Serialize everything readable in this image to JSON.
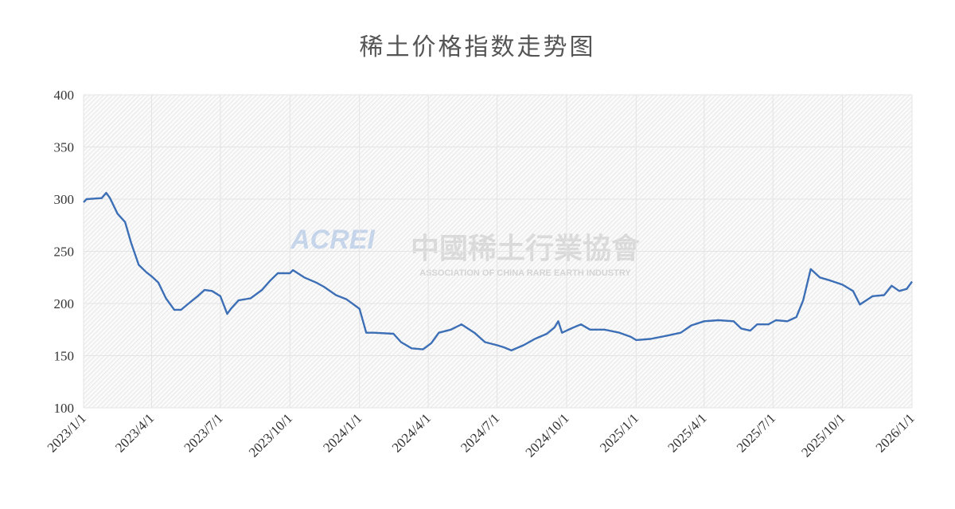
{
  "chart_data": {
    "type": "line",
    "title": "稀土价格指数走势图",
    "watermark": {
      "logo": "ACREI",
      "name": "中國稀土行業協會",
      "subtitle": "ASSOCIATION OF CHINA RARE EARTH INDUSTRY"
    },
    "xlim": [
      "2023/1/1",
      "2026/1/1"
    ],
    "xticks": [
      "2023/1/1",
      "2023/4/1",
      "2023/7/1",
      "2023/10/1",
      "2024/1/1",
      "2024/4/1",
      "2024/7/1",
      "2024/10/1",
      "2025/1/1",
      "2025/4/1",
      "2025/7/1",
      "2025/10/1",
      "2026/1/1"
    ],
    "ylim": [
      100,
      400
    ],
    "yticks": [
      100,
      150,
      200,
      250,
      300,
      350,
      400
    ],
    "grid": true,
    "series": [
      {
        "name": "稀土价格指数",
        "color": "#3d6fb6",
        "x": [
          "2023/1/1",
          "2023/1/5",
          "2023/1/25",
          "2023/1/31",
          "2023/2/5",
          "2023/2/15",
          "2023/2/25",
          "2023/3/5",
          "2023/3/15",
          "2023/3/25",
          "2023/4/1",
          "2023/4/10",
          "2023/4/20",
          "2023/5/1",
          "2023/5/10",
          "2023/5/20",
          "2023/6/1",
          "2023/6/10",
          "2023/6/20",
          "2023/7/1",
          "2023/7/10",
          "2023/7/15",
          "2023/7/25",
          "2023/8/10",
          "2023/8/25",
          "2023/9/5",
          "2023/9/15",
          "2023/10/1",
          "2023/10/5",
          "2023/10/20",
          "2023/11/5",
          "2023/11/15",
          "2023/12/1",
          "2023/12/15",
          "2024/1/1",
          "2024/1/10",
          "2024/1/20",
          "2024/2/15",
          "2024/2/25",
          "2024/3/10",
          "2024/3/25",
          "2024/4/5",
          "2024/4/15",
          "2024/5/1",
          "2024/5/15",
          "2024/6/1",
          "2024/6/15",
          "2024/7/1",
          "2024/7/10",
          "2024/7/20",
          "2024/8/5",
          "2024/8/20",
          "2024/9/5",
          "2024/9/15",
          "2024/9/20",
          "2024/9/25",
          "2024/10/10",
          "2024/10/20",
          "2024/11/1",
          "2024/11/20",
          "2024/12/10",
          "2024/12/25",
          "2025/1/1",
          "2025/1/20",
          "2025/2/10",
          "2025/3/1",
          "2025/3/15",
          "2025/4/1",
          "2025/4/20",
          "2025/5/10",
          "2025/5/20",
          "2025/6/1",
          "2025/6/10",
          "2025/6/25",
          "2025/7/5",
          "2025/7/20",
          "2025/8/1",
          "2025/8/10",
          "2025/8/20",
          "2025/9/1",
          "2025/9/15",
          "2025/10/1",
          "2025/10/15",
          "2025/10/24",
          "2025/11/10",
          "2025/11/25",
          "2025/12/5",
          "2025/12/15",
          "2025/12/25",
          "2026/1/1"
        ],
        "values": [
          297,
          300,
          301,
          306,
          301,
          286,
          278,
          258,
          237,
          230,
          226,
          220,
          205,
          194,
          194,
          200,
          207,
          213,
          212,
          207,
          190,
          195,
          203,
          205,
          213,
          222,
          229,
          229,
          232,
          225,
          220,
          216,
          208,
          204,
          195,
          172,
          172,
          171,
          163,
          157,
          156,
          162,
          172,
          175,
          180,
          172,
          163,
          160,
          158,
          155,
          160,
          166,
          171,
          177,
          183,
          172,
          177,
          180,
          175,
          175,
          172,
          168,
          165,
          166,
          169,
          172,
          179,
          183,
          184,
          183,
          176,
          174,
          180,
          180,
          184,
          183,
          187,
          203,
          233,
          225,
          222,
          218,
          212,
          199,
          207,
          208,
          217,
          212,
          214,
          221
        ]
      }
    ]
  }
}
